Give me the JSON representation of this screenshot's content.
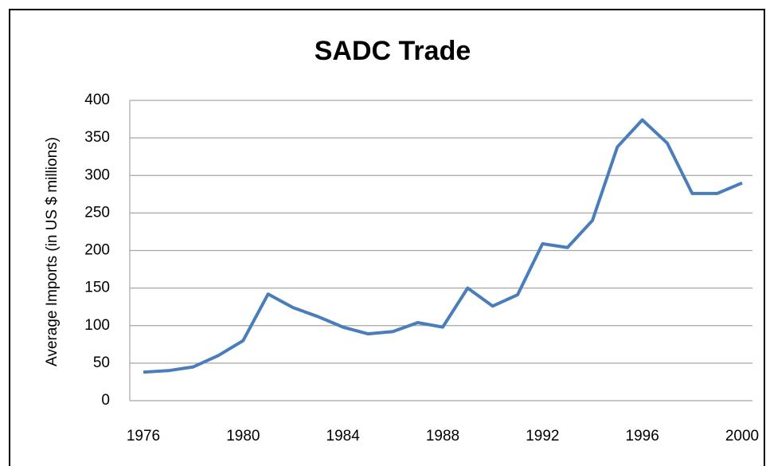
{
  "chart_data": {
    "type": "line",
    "title": "SADC Trade",
    "y_label": "Average Imports (in US $ millions)",
    "x": [
      1976,
      1977,
      1978,
      1979,
      1980,
      1981,
      1982,
      1983,
      1984,
      1985,
      1986,
      1987,
      1988,
      1989,
      1990,
      1991,
      1992,
      1993,
      1994,
      1995,
      1996,
      1997,
      1998,
      1999,
      2000
    ],
    "series": [
      {
        "name": "Average Imports",
        "color": "#4a7ebb",
        "values": [
          38,
          40,
          45,
          60,
          80,
          142,
          124,
          112,
          98,
          89,
          92,
          104,
          98,
          150,
          126,
          141,
          209,
          204,
          240,
          338,
          374,
          343,
          276,
          276,
          290
        ]
      }
    ],
    "xlim": [
      1976,
      2000
    ],
    "xticks": [
      1976,
      1980,
      1984,
      1988,
      1992,
      1996,
      2000
    ],
    "ylim": [
      0,
      400
    ],
    "yticks": [
      0,
      50,
      100,
      150,
      200,
      250,
      300,
      350,
      400
    ],
    "grid": true
  }
}
